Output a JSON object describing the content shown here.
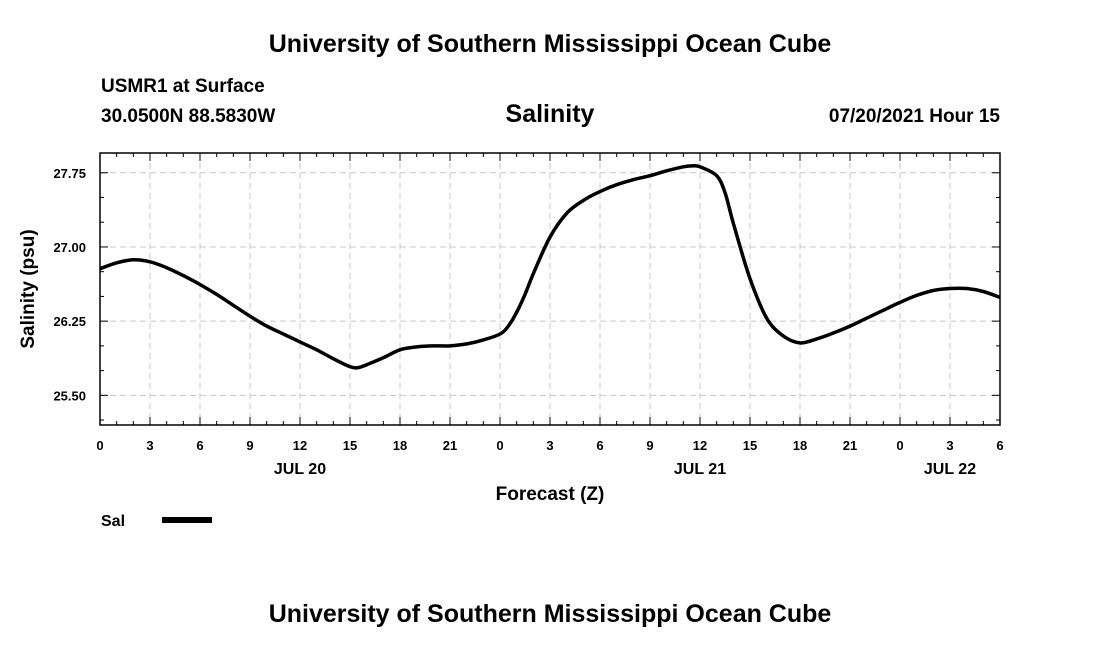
{
  "header": {
    "title": "University of Southern Mississippi Ocean Cube",
    "station": "USMR1 at Surface",
    "coordinates": "30.0500N  88.5830W",
    "variable": "Salinity",
    "datetime": "07/20/2021 Hour 15"
  },
  "footer": {
    "title": "University of Southern Mississippi Ocean Cube"
  },
  "chart_data": {
    "type": "line",
    "title": "Salinity",
    "xlabel": "Forecast (Z)",
    "ylabel": "Salinity (psu)",
    "xlim": [
      0,
      54
    ],
    "ylim": [
      25.2,
      27.95
    ],
    "yticks": [
      25.5,
      26.25,
      27.0,
      27.75
    ],
    "ytick_labels": [
      "25.50",
      "26.25",
      "27.00",
      "27.75"
    ],
    "xticks": [
      0,
      3,
      6,
      9,
      12,
      15,
      18,
      21,
      24,
      27,
      30,
      33,
      36,
      39,
      42,
      45,
      48,
      51,
      54
    ],
    "xtick_labels": [
      "0",
      "3",
      "6",
      "9",
      "12",
      "15",
      "18",
      "21",
      "0",
      "3",
      "6",
      "9",
      "12",
      "15",
      "18",
      "21",
      "0",
      "3",
      "6"
    ],
    "date_labels": [
      {
        "x": 12,
        "label": "JUL 20"
      },
      {
        "x": 36,
        "label": "JUL 21"
      },
      {
        "x": 51,
        "label": "JUL 22"
      }
    ],
    "grid": true,
    "legend_position": "bottom-left",
    "series": [
      {
        "name": "Sal",
        "color": "#000000",
        "x": [
          0,
          1,
          2,
          3,
          4,
          5,
          6,
          7,
          8,
          9,
          10,
          11,
          12,
          13,
          14,
          15,
          15.5,
          16,
          17,
          18,
          19,
          20,
          21,
          22,
          23,
          24,
          24.5,
          25,
          25.5,
          26,
          27,
          28,
          29,
          30,
          31,
          32,
          33,
          34,
          35,
          35.5,
          36,
          37,
          37.5,
          38,
          39,
          40,
          41,
          42,
          43,
          44,
          45,
          46,
          47,
          48,
          49,
          50,
          51,
          52,
          53,
          54
        ],
        "y": [
          26.78,
          26.84,
          26.87,
          26.85,
          26.79,
          26.71,
          26.62,
          26.52,
          26.41,
          26.3,
          26.2,
          26.12,
          26.04,
          25.96,
          25.87,
          25.79,
          25.78,
          25.81,
          25.88,
          25.96,
          25.99,
          26.0,
          26.0,
          26.02,
          26.06,
          26.12,
          26.2,
          26.34,
          26.52,
          26.73,
          27.1,
          27.34,
          27.47,
          27.56,
          27.63,
          27.68,
          27.72,
          27.77,
          27.81,
          27.82,
          27.81,
          27.72,
          27.55,
          27.24,
          26.68,
          26.28,
          26.1,
          26.03,
          26.07,
          26.13,
          26.2,
          26.28,
          26.36,
          26.44,
          26.51,
          26.56,
          26.58,
          26.58,
          26.55,
          26.49
        ]
      }
    ]
  }
}
